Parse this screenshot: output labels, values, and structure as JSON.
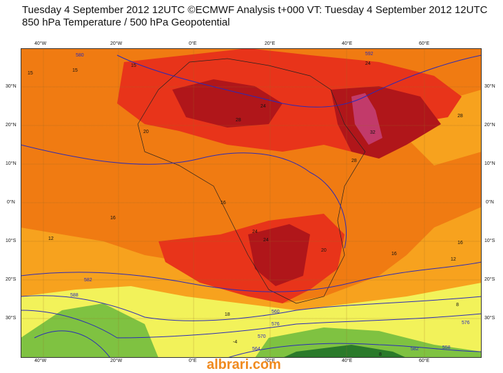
{
  "header": {
    "title_line1": "Tuesday 4 September 2012 12UTC ©ECMWF Analysis t+000 VT: Tuesday 4 September 2012 12UTC",
    "title_line2": "850 hPa Temperature / 500 hPa Geopotential"
  },
  "axes": {
    "lon_labels": [
      "40°W",
      "20°W",
      "0°E",
      "20°E",
      "40°E",
      "60°E"
    ],
    "lat_labels": [
      "30°N",
      "20°N",
      "10°N",
      "0°N",
      "10°S",
      "20°S",
      "30°S"
    ]
  },
  "contour_labels": {
    "temperature": [
      "15",
      "15",
      "15",
      "20",
      "24",
      "28",
      "24",
      "32",
      "28",
      "16",
      "16",
      "12",
      "24",
      "24",
      "20",
      "16",
      "12",
      "16",
      "18",
      "12",
      "24",
      "16",
      "20",
      "8",
      "4",
      "-4",
      "8",
      "12",
      "28",
      "4"
    ],
    "geopotential": [
      "580",
      "582",
      "588",
      "560",
      "552",
      "576",
      "570",
      "564",
      "582",
      "570",
      "576",
      "564",
      "558",
      "552",
      "546",
      "588",
      "588",
      "592"
    ]
  },
  "legend": {
    "colors": {
      "cold": "#2a7a2a",
      "cool": "#7fc241",
      "mild": "#f2f25a",
      "warm": "#f7b321",
      "hot": "#f07b12",
      "very_hot": "#e8341a",
      "extreme": "#b0161a",
      "max": "#c23a6a",
      "geopotential_line": "#2a2ab8"
    }
  },
  "watermark": "albrari.com"
}
